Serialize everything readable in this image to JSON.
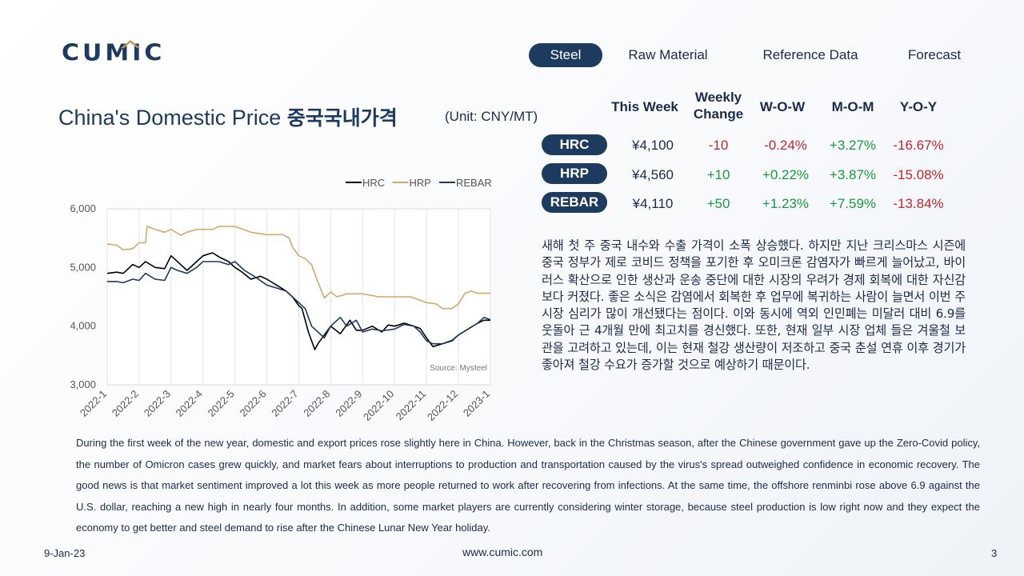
{
  "logo": {
    "text": "CUMIC",
    "accent_color": "#b89a5a",
    "brand_color": "#1d3a5f"
  },
  "nav": {
    "tabs": [
      "Steel",
      "Raw Material",
      "Reference Data",
      "Forecast"
    ],
    "active": "Steel"
  },
  "title": {
    "en": "China's Domestic Price",
    "ko": "중국국내가격",
    "unit": "(Unit: CNY/MT)"
  },
  "table": {
    "headers": {
      "this_week": "This Week",
      "weekly_change_line1": "Weekly",
      "weekly_change_line2": "Change",
      "wow": "W-O-W",
      "mom": "M-O-M",
      "yoy": "Y-O-Y"
    },
    "rows": [
      {
        "name": "HRC",
        "this_week": "¥4,100",
        "weekly_change": "-10",
        "wow": "-0.24%",
        "mom": "+3.27%",
        "yoy": "-16.67%"
      },
      {
        "name": "HRP",
        "this_week": "¥4,560",
        "weekly_change": "+10",
        "wow": "+0.22%",
        "mom": "+3.87%",
        "yoy": "-15.08%"
      },
      {
        "name": "REBAR",
        "this_week": "¥4,110",
        "weekly_change": "+50",
        "wow": "+1.23%",
        "mom": "+7.59%",
        "yoy": "-13.84%"
      }
    ]
  },
  "chart_data": {
    "type": "line",
    "source": "Source: Mysteel",
    "legend_position": "top-right",
    "ylim": [
      3000,
      6000
    ],
    "y_ticks": [
      "3,000",
      "4,000",
      "5,000",
      "6,000"
    ],
    "x_ticks": [
      "2022-1",
      "2022-2",
      "2022-3",
      "2022-4",
      "2022-5",
      "2022-6",
      "2022-7",
      "2022-8",
      "2022-9",
      "2022-10",
      "2022-11",
      "2022-12",
      "2023-1"
    ],
    "grid": "vertical",
    "series": [
      {
        "name": "HRC",
        "color": "#000000",
        "x": [
          0,
          0.3,
          0.5,
          0.8,
          1.0,
          1.2,
          1.5,
          1.8,
          2.0,
          2.1,
          2.3,
          2.5,
          2.8,
          3.0,
          3.3,
          3.5,
          3.8,
          4.0,
          4.2,
          4.5,
          4.8,
          5.0,
          5.3,
          5.6,
          5.8,
          6.0,
          6.1,
          6.3,
          6.5,
          6.6,
          6.8,
          7.0,
          7.3,
          7.6,
          7.8,
          8.0,
          8.3,
          8.6,
          8.8,
          9.0,
          9.3,
          9.6,
          9.8,
          10.0,
          10.2,
          10.5,
          10.8,
          11.0,
          11.3,
          11.6,
          11.8,
          12.0
        ],
        "values": [
          4900,
          4920,
          4900,
          5050,
          5000,
          5100,
          5000,
          4980,
          5200,
          5150,
          5050,
          4950,
          5100,
          5200,
          5250,
          5180,
          5100,
          5000,
          4930,
          4800,
          4850,
          4800,
          4700,
          4600,
          4500,
          4350,
          4300,
          3900,
          3600,
          3700,
          3850,
          4000,
          3870,
          4100,
          3930,
          3930,
          4000,
          3900,
          4020,
          4000,
          4050,
          4000,
          3960,
          3800,
          3650,
          3700,
          3750,
          3850,
          3950,
          4050,
          4100,
          4100
        ]
      },
      {
        "name": "HRP",
        "color": "#d4a86a",
        "x": [
          0,
          0.3,
          0.5,
          0.8,
          1.0,
          1.2,
          1.25,
          1.5,
          1.8,
          2.0,
          2.3,
          2.5,
          2.8,
          3.0,
          3.3,
          3.5,
          4.0,
          4.5,
          5.0,
          5.5,
          5.7,
          5.8,
          6.0,
          6.2,
          6.4,
          6.6,
          6.8,
          7.0,
          7.2,
          7.5,
          8.0,
          8.5,
          9.0,
          9.5,
          10.0,
          10.3,
          10.5,
          10.8,
          11.0,
          11.2,
          11.4,
          11.6,
          11.8,
          12.0
        ],
        "values": [
          5400,
          5380,
          5300,
          5320,
          5420,
          5420,
          5700,
          5650,
          5600,
          5650,
          5550,
          5600,
          5650,
          5650,
          5650,
          5700,
          5700,
          5600,
          5560,
          5560,
          5500,
          5350,
          5200,
          5150,
          5050,
          4750,
          4480,
          4580,
          4500,
          4550,
          4550,
          4500,
          4500,
          4500,
          4400,
          4380,
          4300,
          4300,
          4380,
          4560,
          4600,
          4560,
          4560,
          4560
        ]
      },
      {
        "name": "REBAR",
        "color": "#1d3a5f",
        "x": [
          0,
          0.3,
          0.5,
          0.8,
          1.0,
          1.2,
          1.5,
          1.8,
          2.0,
          2.2,
          2.5,
          2.8,
          3.0,
          3.3,
          3.5,
          3.8,
          4.0,
          4.3,
          4.6,
          5.0,
          5.3,
          5.6,
          5.8,
          6.0,
          6.2,
          6.4,
          6.6,
          6.8,
          7.0,
          7.3,
          7.5,
          7.8,
          8.0,
          8.3,
          8.6,
          9.0,
          9.3,
          9.6,
          9.8,
          10.0,
          10.2,
          10.5,
          10.8,
          11.0,
          11.3,
          11.6,
          11.8,
          12.0
        ],
        "values": [
          4760,
          4760,
          4740,
          4800,
          4780,
          4900,
          4800,
          4780,
          5000,
          4950,
          4900,
          5000,
          5100,
          5100,
          5100,
          5050,
          5100,
          4950,
          4850,
          4700,
          4650,
          4600,
          4500,
          4400,
          4300,
          4000,
          3900,
          3800,
          4000,
          4150,
          4000,
          4100,
          3900,
          3950,
          3920,
          3950,
          4030,
          4000,
          3900,
          3750,
          3700,
          3700,
          3760,
          3850,
          3950,
          4050,
          4150,
          4110
        ]
      }
    ]
  },
  "korean_text": "새해 첫 주 중국 내수와 수출 가격이 소폭 상승했다. 하지만 지난 크리스마스 시즌에 중국 정부가 제로 코비드 정책을 포기한 후 오미크론 감염자가 빠르게 늘어났고, 바이러스 확산으로 인한 생산과 운송 중단에 대한 시장의 우려가 경제 회복에 대한 자신감보다 커졌다. 좋은 소식은 감염에서 회복한 후 업무에 복귀하는 사람이 늘면서 이번 주 시장 심리가 많이 개선됐다는 점이다. 이와 동시에 역외 인민폐는 미달러 대비 6.9를 웃돌아 근 4개월 만에 최고치를 경신했다. 또한, 현재 일부 시장 업체 들은 겨울철 보관을 고려하고 있는데, 이는 현재 철강 생산량이 저조하고 중국 춘설 연휴 이후 경기가 좋아져 철강 수요가 증가할 것으로 예상하기 때문이다.",
  "english_text": "During the first week of the new year, domestic and export prices rose slightly here in China. However, back in the Christmas season, after the Chinese government gave up the Zero-Covid policy, the number of Omicron cases grew quickly, and market fears about interruptions to production and transportation caused by the virus's spread outweighed confidence in economic recovery. The good news is that market sentiment improved a lot this week as more people returned to work after recovering from infections. At the same time, the offshore renminbi rose above 6.9 against the U.S. dollar, reaching a new high in nearly four months. In addition, some market players are currently considering winter storage, because steel production is low right now and they expect the economy to get better and steel demand to rise after the Chinese Lunar New Year holiday.",
  "footer": {
    "date": "9-Jan-23",
    "url": "www.cumic.com",
    "page": "3"
  }
}
